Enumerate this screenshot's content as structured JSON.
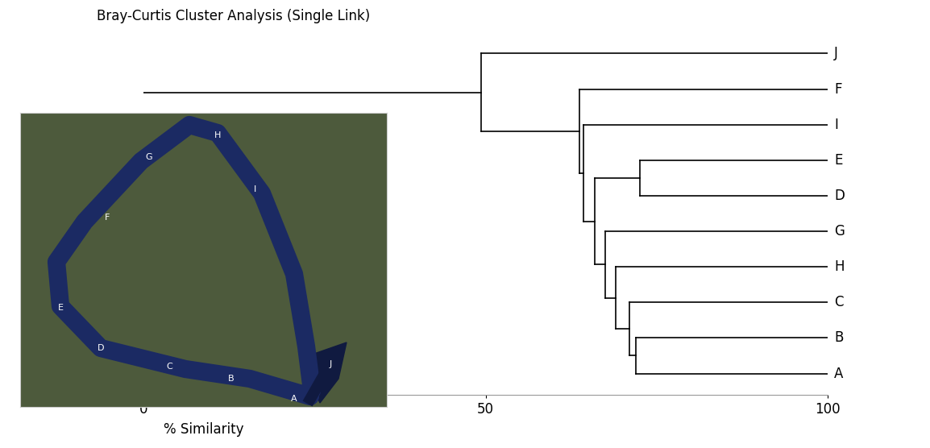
{
  "chart_data": {
    "type": "dendrogram",
    "title": "Bray-Curtis Cluster Analysis (Single Link)",
    "xlabel": "% Similarity",
    "leaves": [
      "J",
      "F",
      "I",
      "E",
      "D",
      "G",
      "H",
      "C",
      "B",
      "A"
    ],
    "merges": [
      {
        "join": [
          "B",
          "A"
        ],
        "similarity": 72
      },
      {
        "join": [
          "C",
          0
        ],
        "similarity": 71
      },
      {
        "join": [
          "H",
          1
        ],
        "similarity": 69
      },
      {
        "join": [
          "G",
          2
        ],
        "similarity": 67.5
      },
      {
        "join": [
          "E",
          "D"
        ],
        "similarity": 72.5
      },
      {
        "join": [
          4,
          3
        ],
        "similarity": 66
      },
      {
        "join": [
          "I",
          5
        ],
        "similarity": 64.3
      },
      {
        "join": [
          "F",
          6
        ],
        "similarity": 63.7
      },
      {
        "join": [
          "J",
          7
        ],
        "similarity": 49.3
      }
    ],
    "xlim": [
      0,
      100
    ],
    "xticks": [
      0,
      50,
      100
    ],
    "color": "#000000",
    "map_labels": [
      "A",
      "B",
      "C",
      "D",
      "E",
      "F",
      "G",
      "H",
      "I",
      "J"
    ]
  }
}
